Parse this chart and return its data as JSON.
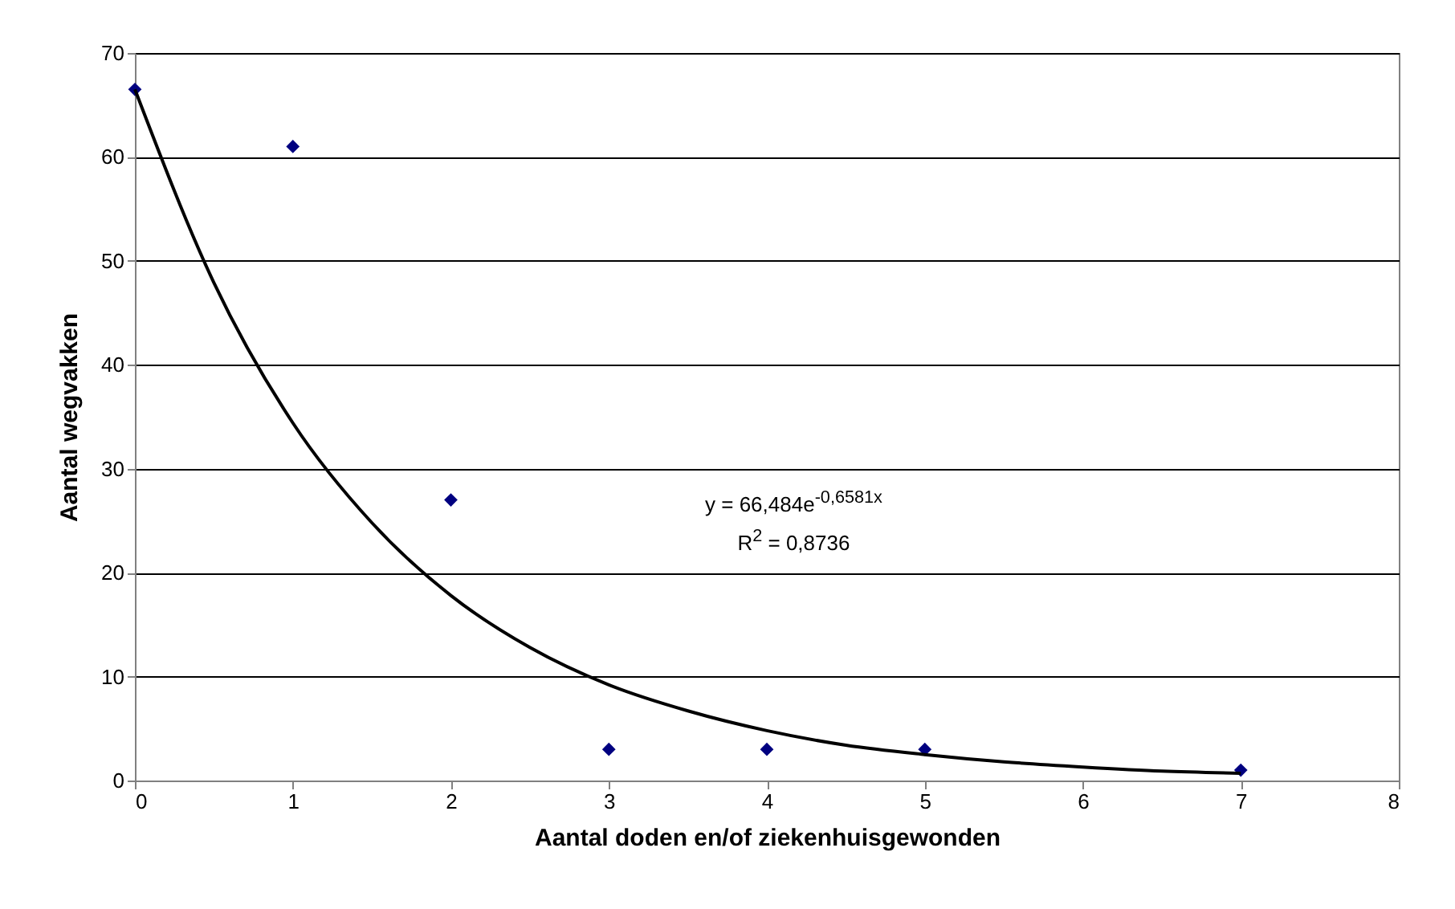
{
  "chart_data": {
    "type": "scatter",
    "xlabel": "Aantal doden en/of ziekenhuisgewonden",
    "ylabel": "Aantal wegvakken",
    "xlim": [
      0,
      8
    ],
    "xticks": [
      0,
      1,
      2,
      3,
      4,
      5,
      6,
      7,
      8
    ],
    "ylim": [
      0,
      70
    ],
    "yticks": [
      0,
      10,
      20,
      30,
      40,
      50,
      60,
      70
    ],
    "grid": "y",
    "series": [
      {
        "marker": "diamond",
        "color": "#000080",
        "x": [
          0,
          1,
          2,
          3,
          4,
          5,
          7
        ],
        "values": [
          66.5,
          61,
          27,
          3,
          3,
          3,
          1
        ]
      },
      {
        "type": "line",
        "color": "#000000",
        "line_style": "solid",
        "x": [
          0,
          0.5,
          1,
          1.5,
          2,
          2.5,
          3,
          3.5,
          4,
          4.5,
          5,
          5.5,
          6,
          6.5,
          7
        ],
        "values": [
          66.5,
          47.9,
          34.4,
          24.8,
          17.8,
          12.8,
          9.2,
          6.7,
          4.8,
          3.4,
          2.5,
          1.8,
          1.3,
          0.9,
          0.7
        ]
      }
    ],
    "annotations": [
      "y = 66,484e$^{-0,6581x}$",
      "R$^{2}$ = 0,8736"
    ]
  }
}
